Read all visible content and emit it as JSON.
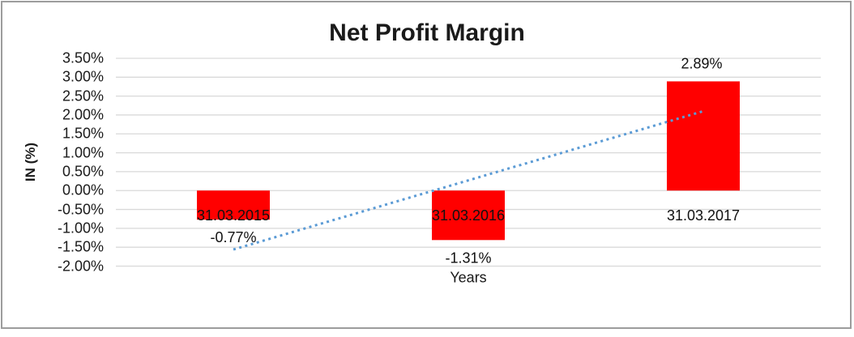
{
  "chart_data": {
    "type": "bar",
    "title": "Net Profit Margin",
    "xlabel": "Years",
    "ylabel": "IN (%)",
    "categories": [
      "31.03.2015",
      "31.03.2016",
      "31.03.2017"
    ],
    "values": [
      -0.77,
      -1.31,
      2.89
    ],
    "data_labels": [
      "-0.77%",
      "-1.31%",
      "2.89%"
    ],
    "ylim": [
      -2.0,
      3.5
    ],
    "ytick_step": 0.5,
    "ytick_labels": [
      "3.50%",
      "3.00%",
      "2.50%",
      "2.00%",
      "1.50%",
      "1.00%",
      "0.50%",
      "0.00%",
      "-0.50%",
      "-1.00%",
      "-1.50%",
      "-2.00%"
    ],
    "grid": true,
    "legend": "none",
    "bar_color": "#FF0000",
    "gridline_color": "#D9D9D9",
    "label_color": "#111111",
    "trendline": {
      "type": "linear",
      "style": "dotted",
      "color": "#5B9BD5",
      "start_value": -1.56,
      "end_value": 2.1
    }
  }
}
